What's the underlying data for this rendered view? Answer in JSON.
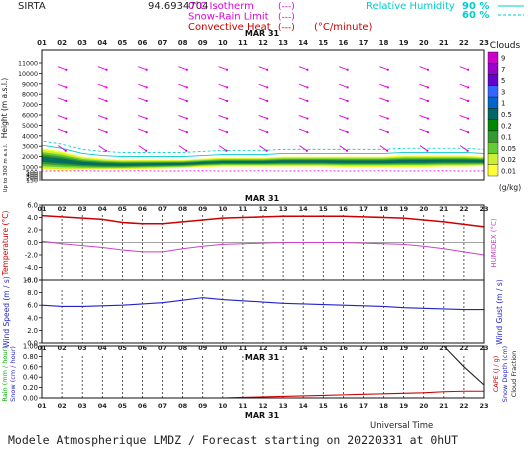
{
  "header": {
    "site": "SIRTA",
    "coords": "94.6934704",
    "legend_left": [
      {
        "label": "0°C Isotherm",
        "color": "#e000e0"
      },
      {
        "label": "Snow-Rain Limit",
        "color": "#e000e0"
      },
      {
        "label": "Convective Heat",
        "color": "#cc0000"
      }
    ],
    "convective_unit": "(°C/minute)",
    "legend_right": {
      "label": "Relative Humidity",
      "color": "#00cccc",
      "values": [
        "90 %",
        "60 %"
      ]
    },
    "legend_sym": "(---)"
  },
  "date_label": "MAR 31",
  "hours": [
    "01",
    "02",
    "03",
    "04",
    "05",
    "06",
    "07",
    "08",
    "09",
    "10",
    "11",
    "12",
    "13",
    "14",
    "15",
    "16",
    "17",
    "18",
    "19",
    "20",
    "21",
    "22",
    "23"
  ],
  "cloud_scale": {
    "title": "Clouds",
    "unit": "(g/kg)",
    "levels": [
      "9",
      "7",
      "5",
      "3",
      "1",
      "0.5",
      "0.2",
      "0.1",
      "0.05",
      "0.02",
      "0.01"
    ],
    "colors": [
      "#cc00cc",
      "#9900cc",
      "#6600cc",
      "#3366ff",
      "#0066cc",
      "#006666",
      "#008800",
      "#339933",
      "#66cc33",
      "#ccee33",
      "#ffff33"
    ]
  },
  "footer": {
    "utc_label": "Universal Time",
    "title": "Modele Atmospherique LMDZ / Forecast starting on 20220331 at 0hUT"
  },
  "chart_data": [
    {
      "type": "area",
      "name": "clouds",
      "ylabel": "Height  (m a.s.l.)",
      "yticks": [
        11000,
        10000,
        9000,
        8000,
        7000,
        6000,
        5000,
        4000,
        3000,
        2000,
        1000,
        500,
        400,
        300,
        200,
        150
      ],
      "subaxis_label": "Up to 300 m a.s.l.",
      "x": [
        1,
        2,
        3,
        4,
        5,
        6,
        7,
        8,
        9,
        10,
        11,
        12,
        13,
        14,
        15,
        16,
        17,
        18,
        19,
        20,
        21,
        22,
        23
      ],
      "cloud_base_m": [
        700,
        650,
        700,
        720,
        750,
        800,
        850,
        900,
        1000,
        1050,
        1050,
        1050,
        1050,
        1050,
        1050,
        1000,
        1000,
        1000,
        1000,
        1000,
        1050,
        1050,
        1100
      ],
      "cloud_top_m": [
        2800,
        2500,
        2000,
        1800,
        1700,
        1700,
        1700,
        1700,
        1800,
        1900,
        1900,
        1900,
        2000,
        2000,
        2000,
        2000,
        2000,
        2000,
        2100,
        2100,
        2100,
        2100,
        2000
      ],
      "max_g_per_kg": [
        0.2,
        0.2,
        0.1,
        0.1,
        0.05,
        0.05,
        0.05,
        0.05,
        0.1,
        0.2,
        0.5,
        0.5,
        0.5,
        0.5,
        0.5,
        0.5,
        0.5,
        0.5,
        0.5,
        0.5,
        0.5,
        0.2,
        0.1
      ]
    },
    {
      "type": "line",
      "name": "temperature-humidex",
      "ylabel": "Temperature (°C)",
      "ylabel_right": "HUMIDEX (°C)",
      "yticks": [
        6.0,
        4.0,
        2.0,
        0.0,
        -2.0,
        -4.0,
        -6.0
      ],
      "ylim": [
        -6,
        6
      ],
      "x": [
        1,
        2,
        3,
        4,
        5,
        6,
        7,
        8,
        9,
        10,
        11,
        12,
        13,
        14,
        15,
        16,
        17,
        18,
        19,
        20,
        21,
        22,
        23
      ],
      "series": [
        {
          "name": "Temperature",
          "color": "#cc0000",
          "values": [
            4.3,
            4.1,
            3.9,
            3.7,
            3.2,
            3.0,
            3.0,
            3.3,
            3.6,
            3.9,
            4.0,
            4.1,
            4.2,
            4.2,
            4.2,
            4.2,
            4.1,
            4.0,
            3.9,
            3.6,
            3.3,
            2.9,
            2.5
          ]
        },
        {
          "name": "Humidex",
          "color": "#cc44cc",
          "values": [
            0.2,
            -0.2,
            -0.5,
            -0.8,
            -1.2,
            -1.5,
            -1.5,
            -1.0,
            -0.6,
            -0.3,
            -0.2,
            -0.1,
            0.0,
            0.0,
            0.0,
            0.0,
            -0.1,
            -0.2,
            -0.3,
            -0.6,
            -1.0,
            -1.5,
            -2.0
          ]
        }
      ]
    },
    {
      "type": "line",
      "name": "wind",
      "ylabel": "Wind Speed (m / s)",
      "ylabel_right": "Wind Gust (m / s)",
      "yticks": [
        10.0,
        8.0,
        6.0,
        4.0,
        2.0,
        0.0
      ],
      "ylim": [
        0,
        10
      ],
      "x": [
        1,
        2,
        3,
        4,
        5,
        6,
        7,
        8,
        9,
        10,
        11,
        12,
        13,
        14,
        15,
        16,
        17,
        18,
        19,
        20,
        21,
        22,
        23
      ],
      "series": [
        {
          "name": "Wind Speed",
          "color": "#2222cc",
          "values": [
            6.0,
            5.8,
            5.8,
            5.9,
            6.0,
            6.2,
            6.4,
            6.8,
            7.2,
            6.9,
            6.7,
            6.5,
            6.3,
            6.2,
            6.1,
            6.0,
            5.9,
            5.8,
            5.6,
            5.5,
            5.4,
            5.3,
            5.3
          ]
        }
      ]
    },
    {
      "type": "line",
      "name": "precip",
      "ylabel": "Rain (mm / hour)",
      "ylabel2": "Snow (cm / hour)",
      "ylabel_right": "CAPE (J / g)",
      "ylabel_right2": "Snow Depth (cm)",
      "ylabel_right3": "Cloud Fraction",
      "yticks": [
        1.0,
        0.8,
        0.6,
        0.4,
        0.2,
        0.0
      ],
      "ylim": [
        0,
        1
      ],
      "x": [
        1,
        2,
        3,
        4,
        5,
        6,
        7,
        8,
        9,
        10,
        11,
        12,
        13,
        14,
        15,
        16,
        17,
        18,
        19,
        20,
        21,
        22,
        23
      ],
      "series": [
        {
          "name": "Rain",
          "color": "#00aa00",
          "values": [
            0,
            0,
            0,
            0,
            0,
            0,
            0,
            0,
            0,
            0,
            0,
            0,
            0,
            0,
            0,
            0,
            0,
            0,
            0,
            0,
            0,
            0,
            0
          ]
        },
        {
          "name": "CAPE",
          "color": "#cc0000",
          "values": [
            0,
            0,
            0,
            0,
            0,
            0,
            0,
            0,
            0,
            0,
            0.01,
            0.02,
            0.03,
            0.04,
            0.05,
            0.06,
            0.07,
            0.08,
            0.09,
            0.1,
            0.12,
            0.13,
            0.13
          ]
        },
        {
          "name": "Cloud Fraction",
          "color": "#222222",
          "values": [
            1,
            1,
            1,
            1,
            1,
            1,
            1,
            1,
            1,
            1,
            1,
            1,
            1,
            1,
            1,
            1,
            1,
            1,
            1,
            1,
            1,
            0.6,
            0.25
          ]
        }
      ]
    }
  ]
}
